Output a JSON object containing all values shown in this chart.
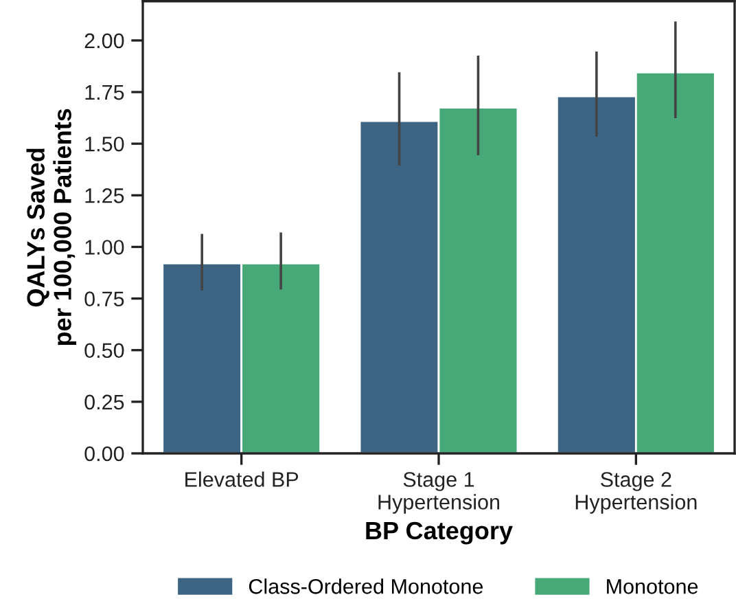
{
  "chart_data": {
    "type": "bar",
    "xlabel": "BP Category",
    "ylabel": "QALYs Saved\nper 100,000 Patients",
    "categories": [
      "Elevated BP",
      "Stage 1\nHypertension",
      "Stage 2\nHypertension"
    ],
    "series": [
      {
        "name": "Class-Ordered Monotone",
        "color": "#3d6482",
        "values": [
          0.92,
          1.61,
          1.73
        ],
        "errors": [
          [
            0.795,
            1.057
          ],
          [
            1.4,
            1.84
          ],
          [
            1.54,
            1.94
          ]
        ]
      },
      {
        "name": "Monotone",
        "color": "#47a878",
        "values": [
          0.92,
          1.675,
          1.845
        ],
        "errors": [
          [
            0.8,
            1.064
          ],
          [
            1.45,
            1.92
          ],
          [
            1.63,
            2.086
          ]
        ]
      }
    ],
    "ylim": [
      0,
      2.19
    ],
    "yticks": [
      {
        "value": 0,
        "label": "0.00"
      },
      {
        "value": 0.25,
        "label": "0.25"
      },
      {
        "value": 0.5,
        "label": "0.50"
      },
      {
        "value": 0.75,
        "label": "0.75"
      },
      {
        "value": 1,
        "label": "1.00"
      },
      {
        "value": 1.25,
        "label": "1.25"
      },
      {
        "value": 1.5,
        "label": "1.50"
      },
      {
        "value": 1.75,
        "label": "1.75"
      },
      {
        "value": 2,
        "label": "2.00"
      }
    ],
    "grid": false,
    "legend": "bottom"
  }
}
